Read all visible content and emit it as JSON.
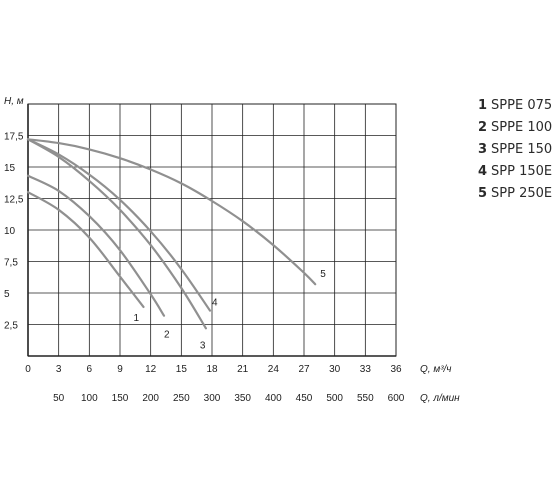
{
  "chart_data": {
    "type": "line",
    "ylabel": "H, м",
    "xlabel": "Q, м³/ч",
    "x2label": "Q, л/мин",
    "xlim": [
      0,
      36
    ],
    "ylim": [
      0,
      20
    ],
    "grid": true,
    "legend_position": "right",
    "x_ticks": [
      "0",
      "3",
      "6",
      "9",
      "12",
      "15",
      "18",
      "21",
      "24",
      "27",
      "30",
      "33",
      "36"
    ],
    "x2_ticks": [
      "50",
      "100",
      "150",
      "200",
      "250",
      "300",
      "350",
      "400",
      "450",
      "500",
      "550",
      "600"
    ],
    "y_ticks": [
      "2,5",
      "5",
      "7,5",
      "10",
      "12,5",
      "15",
      "17,5"
    ],
    "series": [
      {
        "name": "SPPE 075",
        "label": "1",
        "x": [
          0,
          3,
          6,
          9,
          11.3
        ],
        "y": [
          13,
          11.6,
          9.4,
          6.3,
          3.9
        ]
      },
      {
        "name": "SPPE 100",
        "label": "2",
        "x": [
          0,
          3,
          6,
          9,
          12,
          13.3
        ],
        "y": [
          14.3,
          13.1,
          11.1,
          8.4,
          4.9,
          3.2
        ]
      },
      {
        "name": "SPPE 150",
        "label": "3",
        "x": [
          0,
          3,
          6,
          9,
          12,
          15,
          17.4
        ],
        "y": [
          17.2,
          15.8,
          13.9,
          11.6,
          8.8,
          5.4,
          2.2
        ]
      },
      {
        "name": "SPP 150E",
        "label": "4",
        "x": [
          0,
          3,
          6,
          9,
          12,
          15,
          17.8
        ],
        "y": [
          17.2,
          16.0,
          14.4,
          12.4,
          9.9,
          6.9,
          3.6
        ]
      },
      {
        "name": "SPP 250E",
        "label": "5",
        "x": [
          0,
          3,
          6,
          9,
          12,
          15,
          18,
          21,
          24,
          27,
          28.1
        ],
        "y": [
          17.2,
          16.9,
          16.4,
          15.7,
          14.8,
          13.7,
          12.3,
          10.7,
          8.8,
          6.6,
          5.7
        ]
      }
    ],
    "legend": [
      {
        "num": "1",
        "name": "SPPE 075"
      },
      {
        "num": "2",
        "name": "SPPE 100"
      },
      {
        "num": "3",
        "name": "SPPE 150"
      },
      {
        "num": "4",
        "name": "SPP 150E"
      },
      {
        "num": "5",
        "name": "SPP 250E"
      }
    ],
    "colors": {
      "grid": "#222222",
      "curve": "#909090",
      "text": "#1e1e1e"
    }
  }
}
